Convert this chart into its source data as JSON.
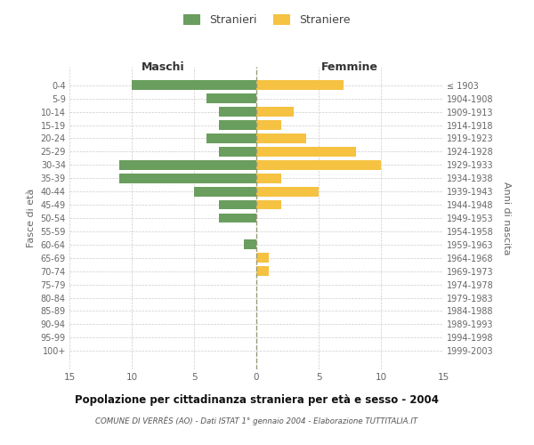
{
  "age_groups": [
    "0-4",
    "5-9",
    "10-14",
    "15-19",
    "20-24",
    "25-29",
    "30-34",
    "35-39",
    "40-44",
    "45-49",
    "50-54",
    "55-59",
    "60-64",
    "65-69",
    "70-74",
    "75-79",
    "80-84",
    "85-89",
    "90-94",
    "95-99",
    "100+"
  ],
  "birth_years": [
    "1999-2003",
    "1994-1998",
    "1989-1993",
    "1984-1988",
    "1979-1983",
    "1974-1978",
    "1969-1973",
    "1964-1968",
    "1959-1963",
    "1954-1958",
    "1949-1953",
    "1944-1948",
    "1939-1943",
    "1934-1938",
    "1929-1933",
    "1924-1928",
    "1919-1923",
    "1914-1918",
    "1909-1913",
    "1904-1908",
    "≤ 1903"
  ],
  "males": [
    10,
    4,
    3,
    3,
    4,
    3,
    11,
    11,
    5,
    3,
    3,
    0,
    1,
    0,
    0,
    0,
    0,
    0,
    0,
    0,
    0
  ],
  "females": [
    7,
    0,
    3,
    2,
    4,
    8,
    10,
    2,
    5,
    2,
    0,
    0,
    0,
    1,
    1,
    0,
    0,
    0,
    0,
    0,
    0
  ],
  "male_color": "#6a9e5e",
  "female_color": "#f5c242",
  "male_label": "Stranieri",
  "female_label": "Straniere",
  "title": "Popolazione per cittadinanza straniera per età e sesso - 2004",
  "subtitle": "COMUNE DI VERRÈS (AO) - Dati ISTAT 1° gennaio 2004 - Elaborazione TUTTITALIA.IT",
  "xlabel_left": "Maschi",
  "xlabel_right": "Femmine",
  "ylabel_left": "Fasce di età",
  "ylabel_right": "Anni di nascita",
  "xlim": 15,
  "background_color": "#ffffff",
  "grid_color": "#cccccc",
  "text_color": "#666666"
}
